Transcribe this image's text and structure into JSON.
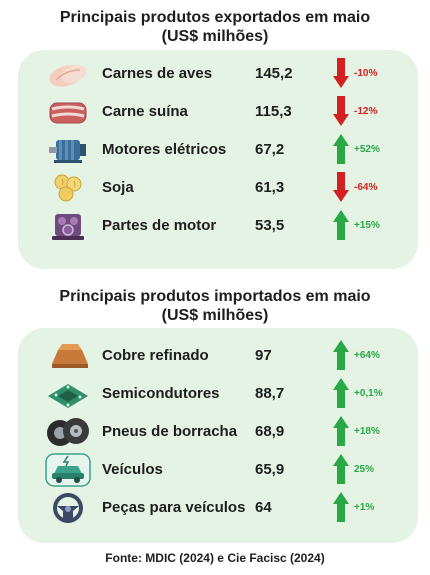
{
  "exports": {
    "title_line1": "Principais produtos exportados em maio",
    "title_line2": "(US$ milhões)",
    "items": [
      {
        "icon": "chicken-meat-icon",
        "name": "Carnes de aves",
        "value": "145,2",
        "change": "-10%",
        "direction": "down"
      },
      {
        "icon": "pork-meat-icon",
        "name": "Carne suína",
        "value": "115,3",
        "change": "-12%",
        "direction": "down"
      },
      {
        "icon": "electric-motor-icon",
        "name": "Motores elétricos",
        "value": "67,2",
        "change": "+52%",
        "direction": "up"
      },
      {
        "icon": "soybean-icon",
        "name": "Soja",
        "value": "61,3",
        "change": "-64%",
        "direction": "down"
      },
      {
        "icon": "engine-part-icon",
        "name": "Partes de motor",
        "value": "53,5",
        "change": "+15%",
        "direction": "up"
      }
    ]
  },
  "imports": {
    "title_line1": "Principais produtos importados em maio",
    "title_line2": "(US$ milhões)",
    "items": [
      {
        "icon": "copper-ingot-icon",
        "name": "Cobre refinado",
        "value": "97",
        "change": "+64%",
        "direction": "up"
      },
      {
        "icon": "semiconductor-chip-icon",
        "name": "Semicondutores",
        "value": "88,7",
        "change": "+0,1%",
        "direction": "up"
      },
      {
        "icon": "rubber-tires-icon",
        "name": "Pneus de borracha",
        "value": "68,9",
        "change": "+18%",
        "direction": "up"
      },
      {
        "icon": "electric-car-icon",
        "name": "Veículos",
        "value": "65,9",
        "change": "25%",
        "direction": "up"
      },
      {
        "icon": "steering-wheel-icon",
        "name": "Peças para veículos",
        "value": "64",
        "change": "+1%",
        "direction": "up"
      }
    ]
  },
  "colors": {
    "panel": "#e5f3e5",
    "up": "#2aa845",
    "down": "#d32020"
  },
  "source": "Fonte: MDIC (2024) e Cie Facisc (2024)"
}
